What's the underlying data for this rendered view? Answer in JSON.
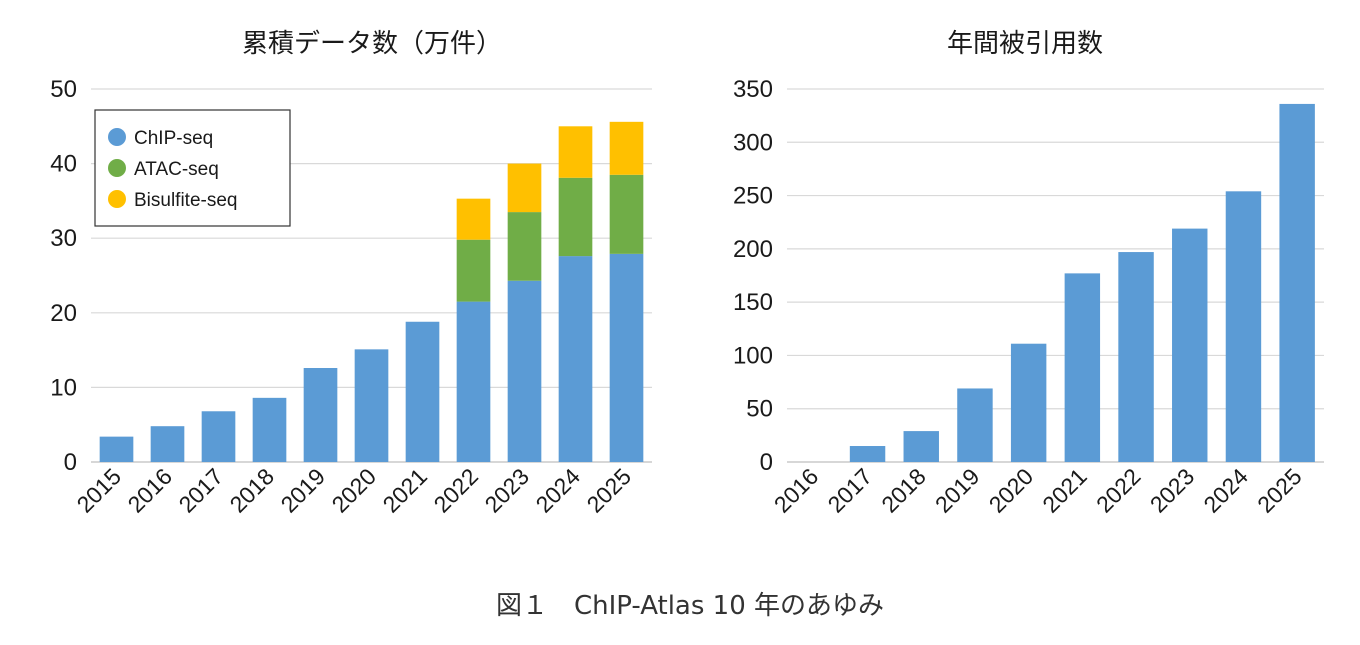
{
  "caption": "図１　ChIP-Atlas 10 年のあゆみ",
  "chart_data": [
    {
      "type": "bar",
      "stacked": true,
      "title": "累積データ数（万件）",
      "xlabel": "",
      "ylabel": "",
      "categories": [
        "2015",
        "2016",
        "2017",
        "2018",
        "2019",
        "2020",
        "2021",
        "2022",
        "2023",
        "2024",
        "2025"
      ],
      "series": [
        {
          "name": "ChIP-seq",
          "color": "#5b9bd5",
          "values": [
            3.4,
            4.8,
            6.8,
            8.6,
            12.6,
            15.1,
            18.8,
            21.5,
            24.3,
            27.6,
            27.9
          ]
        },
        {
          "name": "ATAC-seq",
          "color": "#70ad47",
          "values": [
            0,
            0,
            0,
            0,
            0,
            0,
            0,
            8.3,
            9.2,
            10.5,
            10.6
          ]
        },
        {
          "name": "Bisulfite-seq",
          "color": "#ffc000",
          "values": [
            0,
            0,
            0,
            0,
            0,
            0,
            0,
            5.5,
            6.5,
            6.9,
            7.1
          ]
        }
      ],
      "ylim": [
        0,
        50
      ],
      "yticks": [
        0,
        10,
        20,
        30,
        40,
        50
      ],
      "grid": true,
      "legend": "top-left"
    },
    {
      "type": "bar",
      "title": "年間被引用数",
      "xlabel": "",
      "ylabel": "",
      "categories": [
        "2016",
        "2017",
        "2018",
        "2019",
        "2020",
        "2021",
        "2022",
        "2023",
        "2024",
        "2025"
      ],
      "series": [
        {
          "color": "#5b9bd5",
          "values": [
            0,
            15,
            29,
            69,
            111,
            177,
            197,
            219,
            254,
            336
          ]
        }
      ],
      "ylim": [
        0,
        350
      ],
      "yticks": [
        0,
        50,
        100,
        150,
        200,
        250,
        300,
        350
      ],
      "grid": true
    }
  ]
}
